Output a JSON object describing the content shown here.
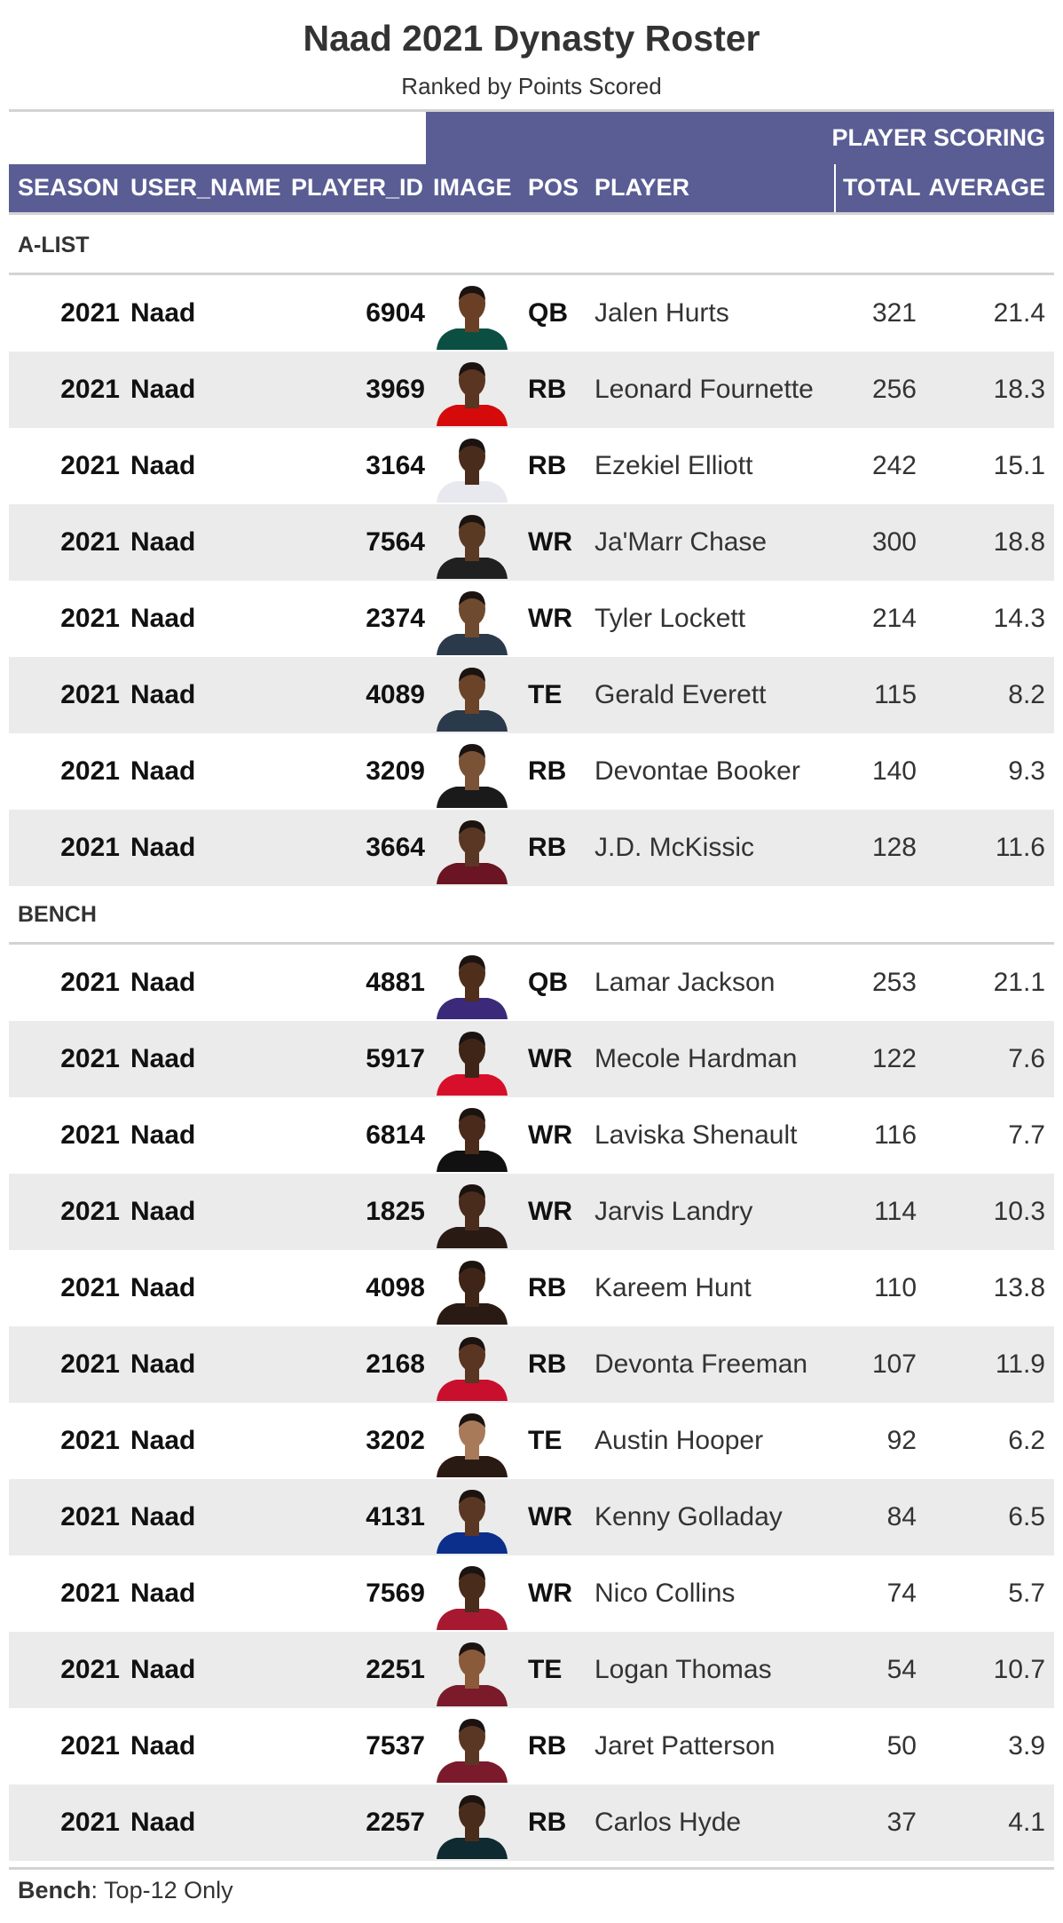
{
  "title": "Naad 2021 Dynasty Roster",
  "subtitle": "Ranked by Points Scored",
  "spanner_label": "PLAYER SCORING",
  "columns": {
    "season": "SEASON",
    "user_name": "USER_NAME",
    "player_id": "PLAYER_ID",
    "image": "IMAGE",
    "pos": "POS",
    "player": "PLAYER",
    "total": "TOTAL",
    "average": "AVERAGE"
  },
  "groups": [
    {
      "label": "A-LIST",
      "rows": [
        {
          "season": "2021",
          "user": "Naad",
          "id": "6904",
          "pos": "QB",
          "player": "Jalen Hurts",
          "total": "321",
          "avg": "21.4",
          "jersey": "#0b4f43",
          "skin": "#6b3f26"
        },
        {
          "season": "2021",
          "user": "Naad",
          "id": "3969",
          "pos": "RB",
          "player": "Leonard Fournette",
          "total": "256",
          "avg": "18.3",
          "jersey": "#d50a0a",
          "skin": "#5a3522"
        },
        {
          "season": "2021",
          "user": "Naad",
          "id": "3164",
          "pos": "RB",
          "player": "Ezekiel Elliott",
          "total": "242",
          "avg": "15.1",
          "jersey": "#e8e8ef",
          "skin": "#4a2c1c"
        },
        {
          "season": "2021",
          "user": "Naad",
          "id": "7564",
          "pos": "WR",
          "player": "Ja'Marr Chase",
          "total": "300",
          "avg": "18.8",
          "jersey": "#202020",
          "skin": "#5b3a24"
        },
        {
          "season": "2021",
          "user": "Naad",
          "id": "2374",
          "pos": "WR",
          "player": "Tyler Lockett",
          "total": "214",
          "avg": "14.3",
          "jersey": "#2b3a4a",
          "skin": "#6e4a2f"
        },
        {
          "season": "2021",
          "user": "Naad",
          "id": "4089",
          "pos": "TE",
          "player": "Gerald Everett",
          "total": "115",
          "avg": "8.2",
          "jersey": "#2b3a4a",
          "skin": "#6a4328"
        },
        {
          "season": "2021",
          "user": "Naad",
          "id": "3209",
          "pos": "RB",
          "player": "Devontae Booker",
          "total": "140",
          "avg": "9.3",
          "jersey": "#1a1a1a",
          "skin": "#7a5236"
        },
        {
          "season": "2021",
          "user": "Naad",
          "id": "3664",
          "pos": "RB",
          "player": "J.D. McKissic",
          "total": "128",
          "avg": "11.6",
          "jersey": "#6b1424",
          "skin": "#5a3724"
        }
      ]
    },
    {
      "label": "BENCH",
      "rows": [
        {
          "season": "2021",
          "user": "Naad",
          "id": "4881",
          "pos": "QB",
          "player": "Lamar Jackson",
          "total": "253",
          "avg": "21.1",
          "jersey": "#3b2a7a",
          "skin": "#4f2f1c"
        },
        {
          "season": "2021",
          "user": "Naad",
          "id": "5917",
          "pos": "WR",
          "player": "Mecole Hardman",
          "total": "122",
          "avg": "7.6",
          "jersey": "#d80f2a",
          "skin": "#3f2518"
        },
        {
          "season": "2021",
          "user": "Naad",
          "id": "6814",
          "pos": "WR",
          "player": "Laviska Shenault",
          "total": "116",
          "avg": "7.7",
          "jersey": "#111111",
          "skin": "#4a2b1b"
        },
        {
          "season": "2021",
          "user": "Naad",
          "id": "1825",
          "pos": "WR",
          "player": "Jarvis Landry",
          "total": "114",
          "avg": "10.3",
          "jersey": "#2a1a14",
          "skin": "#4a2c1c"
        },
        {
          "season": "2021",
          "user": "Naad",
          "id": "4098",
          "pos": "RB",
          "player": "Kareem Hunt",
          "total": "110",
          "avg": "13.8",
          "jersey": "#2a1a14",
          "skin": "#3f2518"
        },
        {
          "season": "2021",
          "user": "Naad",
          "id": "2168",
          "pos": "RB",
          "player": "Devonta Freeman",
          "total": "107",
          "avg": "11.9",
          "jersey": "#c8102e",
          "skin": "#5a3522"
        },
        {
          "season": "2021",
          "user": "Naad",
          "id": "3202",
          "pos": "TE",
          "player": "Austin Hooper",
          "total": "92",
          "avg": "6.2",
          "jersey": "#2a1a14",
          "skin": "#a87a5a"
        },
        {
          "season": "2021",
          "user": "Naad",
          "id": "4131",
          "pos": "WR",
          "player": "Kenny Golladay",
          "total": "84",
          "avg": "6.5",
          "jersey": "#0b2f8a",
          "skin": "#5a3724"
        },
        {
          "season": "2021",
          "user": "Naad",
          "id": "7569",
          "pos": "WR",
          "player": "Nico Collins",
          "total": "74",
          "avg": "5.7",
          "jersey": "#a71930",
          "skin": "#4a2c1c"
        },
        {
          "season": "2021",
          "user": "Naad",
          "id": "2251",
          "pos": "TE",
          "player": "Logan Thomas",
          "total": "54",
          "avg": "10.7",
          "jersey": "#7a1a2a",
          "skin": "#8a5a3a"
        },
        {
          "season": "2021",
          "user": "Naad",
          "id": "7537",
          "pos": "RB",
          "player": "Jaret Patterson",
          "total": "50",
          "avg": "3.9",
          "jersey": "#7a1a2a",
          "skin": "#5a3724"
        },
        {
          "season": "2021",
          "user": "Naad",
          "id": "2257",
          "pos": "RB",
          "player": "Carlos Hyde",
          "total": "37",
          "avg": "4.1",
          "jersey": "#0f2a30",
          "skin": "#4a2c1c"
        }
      ]
    }
  ],
  "footnote": {
    "bold": "Bench",
    "rest": ": Top-12 Only"
  },
  "colors": {
    "header": "#5a5d94",
    "stripe": "#ebebeb",
    "rule": "#d3d3d3"
  }
}
